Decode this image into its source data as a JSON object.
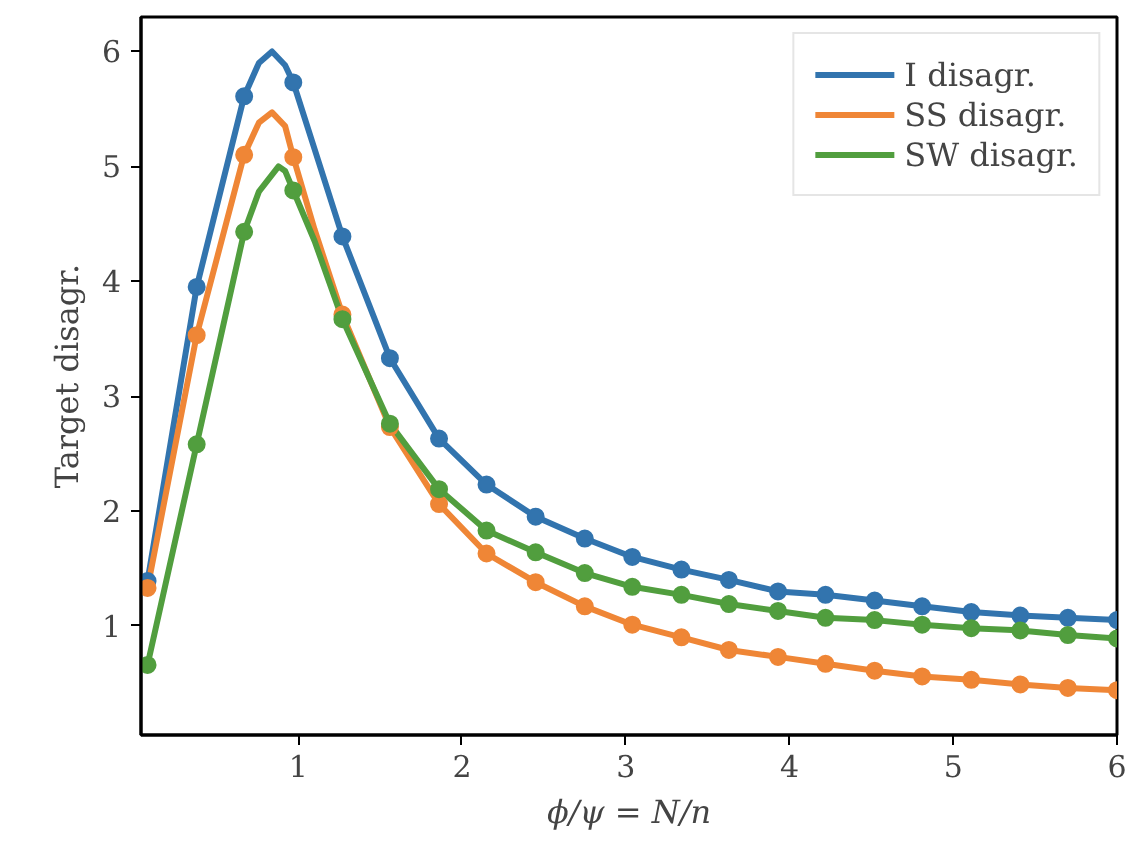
{
  "chart_data": {
    "type": "line",
    "xlabel": "ϕ/ψ = N/n",
    "ylabel": "Target disagr.",
    "xlim": [
      0.04,
      6
    ],
    "ylim": [
      0.05,
      6.3
    ],
    "xticks": [
      1,
      2,
      3,
      4,
      5,
      6
    ],
    "yticks": [
      1,
      2,
      3,
      4,
      5,
      6
    ],
    "grid": false,
    "legend": "top right",
    "marker": "circle",
    "line_style": "solid",
    "x": [
      0.08,
      0.38,
      0.67,
      0.97,
      1.27,
      1.56,
      1.86,
      2.15,
      2.45,
      2.75,
      3.04,
      3.34,
      3.63,
      3.93,
      4.22,
      4.52,
      4.81,
      5.11,
      5.41,
      5.7,
      6.0
    ],
    "series": [
      {
        "name": "I disagr.",
        "color": "#3274ae",
        "marker": "none",
        "x": [
          0.08,
          0.38,
          0.67,
          0.76,
          0.84,
          0.92,
          0.97,
          1.1,
          1.27,
          1.56,
          1.86,
          2.15,
          2.45,
          2.75,
          3.04,
          3.34,
          3.63,
          3.93,
          4.22,
          4.52,
          4.81,
          5.11,
          5.41,
          5.7,
          6.0
        ],
        "values": [
          1.39,
          3.95,
          5.61,
          5.9,
          6.0,
          5.88,
          5.73,
          5.15,
          4.39,
          3.33,
          2.63,
          2.23,
          1.95,
          1.76,
          1.6,
          1.49,
          1.4,
          1.3,
          1.27,
          1.22,
          1.17,
          1.12,
          1.09,
          1.07,
          1.05
        ]
      },
      {
        "name": "SS disagr.",
        "color": "#ef8636",
        "marker": "none",
        "x": [
          0.08,
          0.38,
          0.67,
          0.76,
          0.84,
          0.92,
          0.97,
          1.1,
          1.27,
          1.56,
          1.86,
          2.15,
          2.45,
          2.75,
          3.04,
          3.34,
          3.63,
          3.93,
          4.22,
          4.52,
          4.81,
          5.11,
          5.41,
          5.7,
          6.0
        ],
        "values": [
          1.33,
          3.53,
          5.1,
          5.38,
          5.47,
          5.35,
          5.08,
          4.45,
          3.71,
          2.73,
          2.06,
          1.63,
          1.38,
          1.17,
          1.01,
          0.9,
          0.79,
          0.73,
          0.67,
          0.61,
          0.56,
          0.53,
          0.49,
          0.46,
          0.44
        ]
      },
      {
        "name": "SW disagr.",
        "color": "#519e3e",
        "marker": "none",
        "x": [
          0.08,
          0.38,
          0.67,
          0.76,
          0.88,
          0.92,
          0.97,
          1.1,
          1.27,
          1.56,
          1.86,
          2.15,
          2.45,
          2.75,
          3.04,
          3.34,
          3.63,
          3.93,
          4.22,
          4.52,
          4.81,
          5.11,
          5.41,
          5.7,
          6.0
        ],
        "values": [
          0.66,
          2.58,
          4.43,
          4.78,
          5.0,
          4.96,
          4.79,
          4.35,
          3.67,
          2.76,
          2.19,
          1.83,
          1.64,
          1.46,
          1.34,
          1.27,
          1.19,
          1.13,
          1.07,
          1.05,
          1.01,
          0.98,
          0.96,
          0.92,
          0.89
        ]
      },
      {
        "type": "scatter",
        "color": "#3274ae",
        "values": [
          1.39,
          3.95,
          5.61,
          5.73,
          4.39,
          3.33,
          2.63,
          2.23,
          1.95,
          1.76,
          1.6,
          1.49,
          1.4,
          1.3,
          1.27,
          1.22,
          1.17,
          1.12,
          1.09,
          1.07,
          1.05
        ]
      },
      {
        "type": "scatter",
        "color": "#ef8636",
        "values": [
          1.33,
          3.53,
          5.1,
          5.08,
          3.71,
          2.73,
          2.06,
          1.63,
          1.38,
          1.17,
          1.01,
          0.9,
          0.79,
          0.73,
          0.67,
          0.61,
          0.56,
          0.53,
          0.49,
          0.46,
          0.44
        ]
      },
      {
        "type": "scatter",
        "color": "#519e3e",
        "values": [
          0.66,
          2.58,
          4.43,
          4.79,
          3.67,
          2.76,
          2.19,
          1.83,
          1.64,
          1.46,
          1.34,
          1.27,
          1.19,
          1.13,
          1.07,
          1.05,
          1.01,
          0.98,
          0.96,
          0.92,
          0.89
        ]
      }
    ]
  }
}
